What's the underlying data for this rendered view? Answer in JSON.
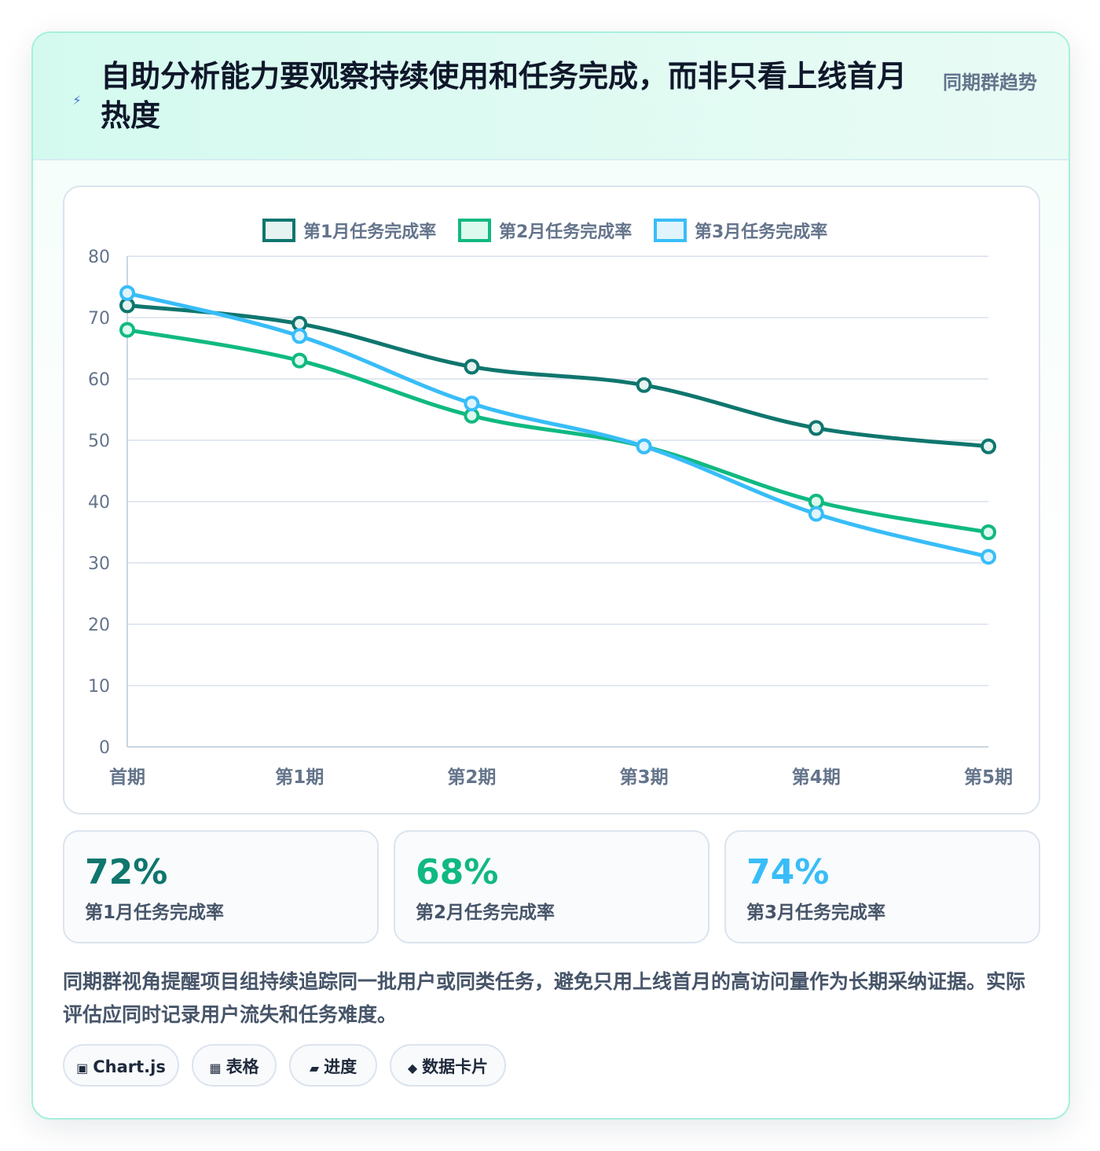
{
  "header": {
    "icon": "lightning-bolt-icon",
    "title": "自助分析能力要观察持续使用和任务完成，而非只看上线首月热度",
    "tag": "同期群趋势"
  },
  "chart_data": {
    "type": "line",
    "title": "",
    "xlabel": "",
    "ylabel": "",
    "categories": [
      "首期",
      "第1期",
      "第2期",
      "第3期",
      "第4期",
      "第5期"
    ],
    "ylim": [
      0,
      80
    ],
    "yticks": [
      0,
      10,
      20,
      30,
      40,
      50,
      60,
      70,
      80
    ],
    "grid": true,
    "legend_position": "top-center",
    "series": [
      {
        "name": "第1月任务完成率",
        "color": "#0f766e",
        "fill": "#e6f4f1",
        "values": [
          72,
          69,
          62,
          59,
          52,
          49
        ]
      },
      {
        "name": "第2月任务完成率",
        "color": "#10b981",
        "fill": "#dcfaee",
        "values": [
          68,
          63,
          54,
          49,
          40,
          35
        ]
      },
      {
        "name": "第3月任务完成率",
        "color": "#38bdf8",
        "fill": "#e0f4fe",
        "values": [
          74,
          67,
          56,
          49,
          38,
          31
        ]
      }
    ]
  },
  "stats": [
    {
      "value": "72%",
      "label": "第1月任务完成率",
      "color": "#0f766e"
    },
    {
      "value": "68%",
      "label": "第2月任务完成率",
      "color": "#10b981"
    },
    {
      "value": "74%",
      "label": "第3月任务完成率",
      "color": "#38bdf8"
    }
  ],
  "description": "同期群视角提醒项目组持续追踪同一批用户或同类任务，避免只用上线首月的高访问量作为长期采纳证据。实际评估应同时记录用户流失和任务难度。",
  "chips": [
    {
      "icon": "▣",
      "icon_name": "chart-square-icon",
      "label": "Chart.js"
    },
    {
      "icon": "▦",
      "icon_name": "table-grid-icon",
      "label": "表格"
    },
    {
      "icon": "▰",
      "icon_name": "progress-bar-icon",
      "label": "进度"
    },
    {
      "icon": "◆",
      "icon_name": "diamond-icon",
      "label": "数据卡片"
    }
  ]
}
